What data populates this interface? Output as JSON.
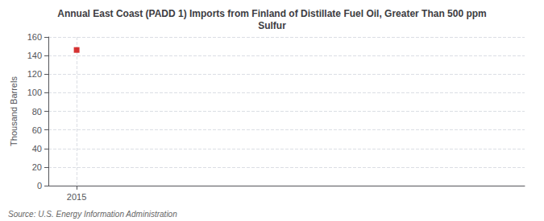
{
  "chart_data": {
    "type": "scatter",
    "title": "Annual East Coast (PADD 1) Imports from Finland of Distillate Fuel Oil, Greater Than 500 ppm\nSulfur",
    "ylabel": "Thousand Barrels",
    "annotation": "Source: U.S. Energy Information Administration",
    "x": [
      2015
    ],
    "values": [
      146
    ],
    "color": "#cc0000",
    "marker": "square",
    "xlim": [
      2014.4,
      2024.5
    ],
    "xticks": [
      2015
    ],
    "ylim": [
      0,
      160
    ],
    "yticks": [
      0,
      20,
      40,
      60,
      80,
      100,
      120,
      140,
      160
    ],
    "grid": true
  }
}
